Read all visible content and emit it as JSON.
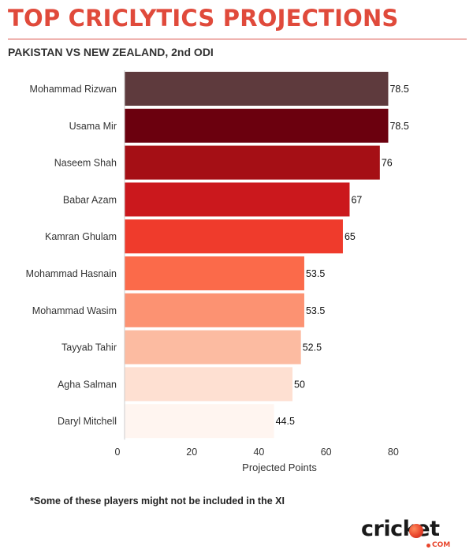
{
  "header": {
    "title": "TOP CRICLYTICS PROJECTIONS",
    "subtitle": "PAKISTAN VS NEW ZEALAND, 2nd ODI"
  },
  "footnote": "*Some of these players might not be included in the XI",
  "brand": {
    "word": "cricket",
    "suffix": "COM"
  },
  "chart_data": {
    "type": "bar",
    "orientation": "horizontal",
    "categories": [
      "Mohammad Rizwan",
      "Usama Mir",
      "Naseem Shah",
      "Babar Azam",
      "Kamran Ghulam",
      "Mohammad Hasnain",
      "Mohammad Wasim",
      "Tayyab Tahir",
      "Agha Salman",
      "Daryl Mitchell"
    ],
    "values": [
      78.5,
      78.5,
      76,
      67,
      65,
      53.5,
      53.5,
      52.5,
      50,
      44.5
    ],
    "value_labels": [
      "78.5",
      "78.5",
      "76",
      "67",
      "65",
      "53.5",
      "53.5",
      "52.5",
      "50",
      "44.5"
    ],
    "colors": [
      "#5e3a3d",
      "#6b000e",
      "#a50f15",
      "#cb181d",
      "#ef3b2c",
      "#fb6a4a",
      "#fc9272",
      "#fcbba1",
      "#fee0d2",
      "#fff5f0"
    ],
    "xlabel": "Projected Points",
    "ylabel": "",
    "xlim": [
      0,
      80.5
    ],
    "xticks": [
      0,
      20,
      40,
      60,
      80
    ],
    "xtick_labels": [
      "0",
      "20",
      "40",
      "60",
      "80"
    ],
    "grid": false,
    "legend": "none"
  }
}
